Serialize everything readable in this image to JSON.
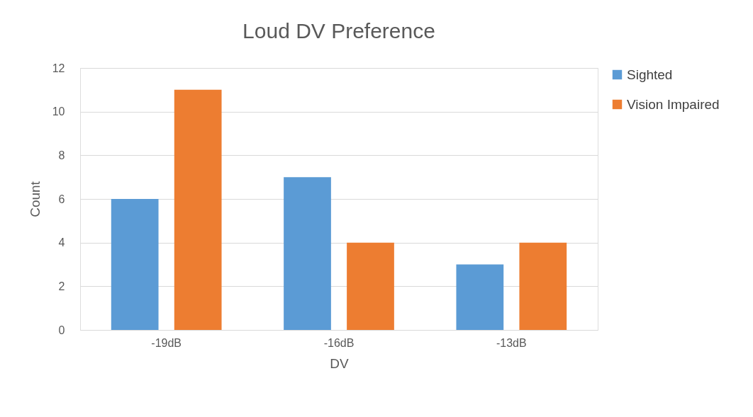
{
  "chart_data": {
    "type": "bar",
    "title": "Loud DV Preference",
    "xlabel": "DV",
    "ylabel": "Count",
    "categories": [
      "-19dB",
      "-16dB",
      "-13dB"
    ],
    "series": [
      {
        "name": "Sighted",
        "color": "#5b9bd5",
        "values": [
          6,
          7,
          3
        ]
      },
      {
        "name": "Vision Impaired",
        "color": "#ed7d31",
        "values": [
          11,
          4,
          4
        ]
      }
    ],
    "ylim": [
      0,
      12
    ],
    "yticks": [
      0,
      2,
      4,
      6,
      8,
      10,
      12
    ],
    "grid": "y",
    "legend": "right"
  }
}
